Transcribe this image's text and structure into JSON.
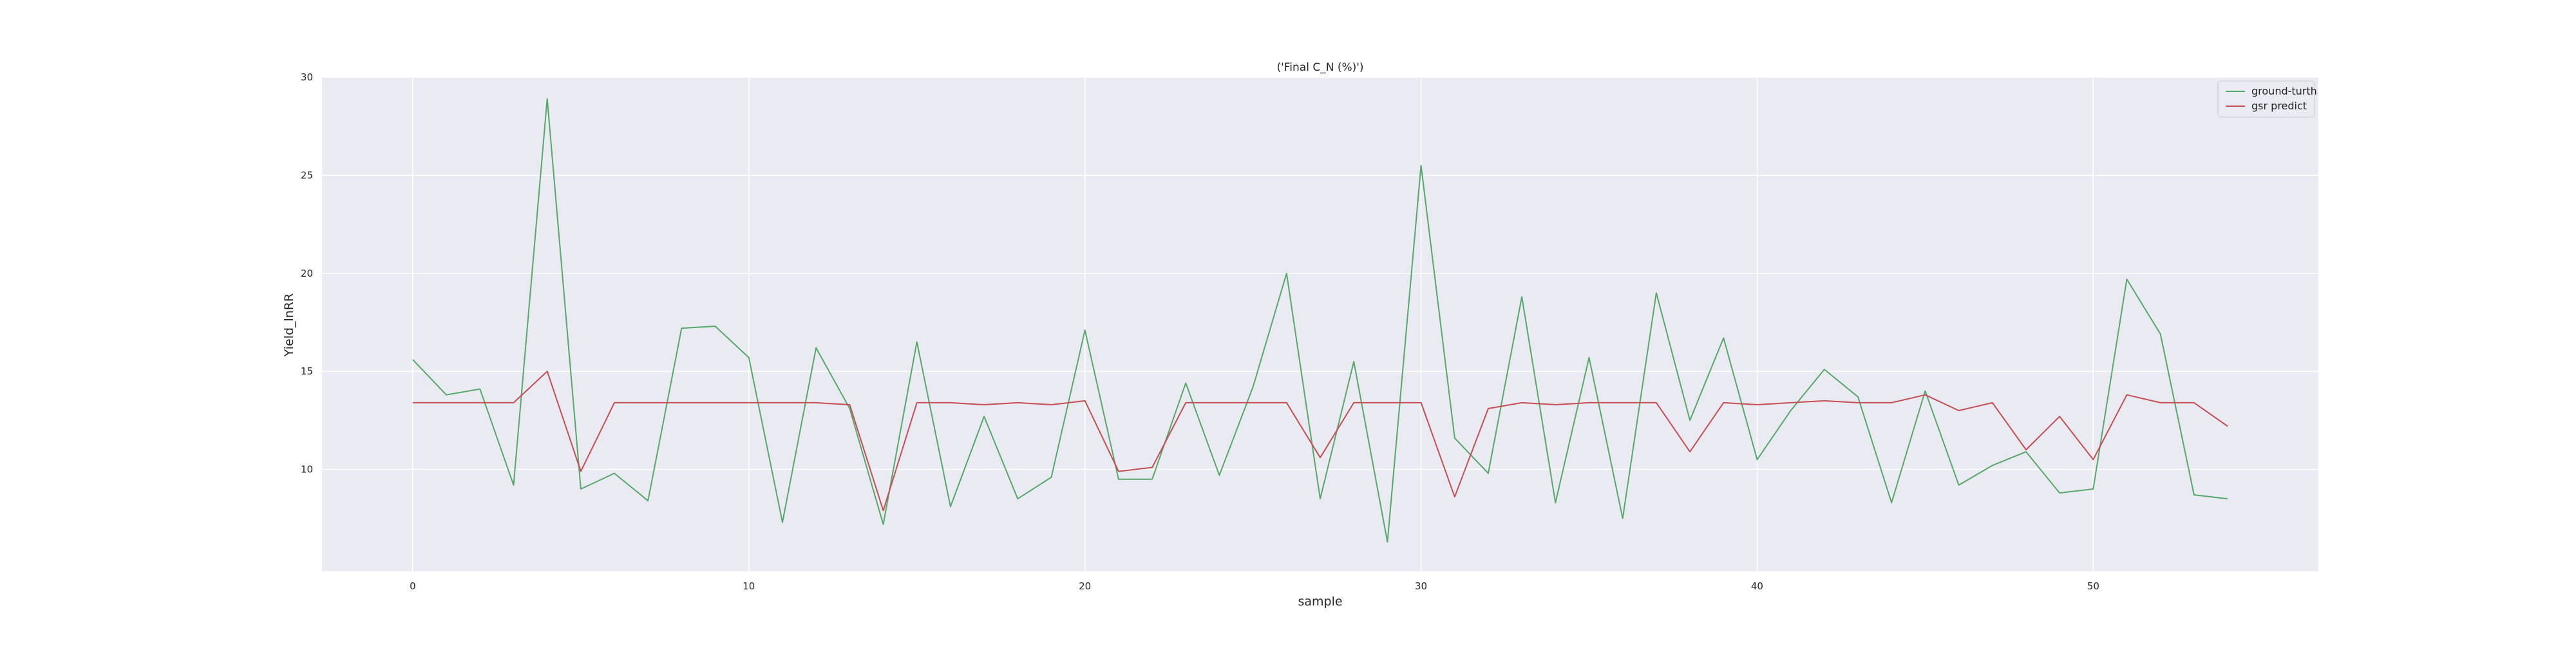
{
  "chart_data": {
    "type": "line",
    "title": "('Final C_N (%)')",
    "xlabel": "sample",
    "ylabel": "Yield_lnRR",
    "xlim": [
      -2.7,
      56.7
    ],
    "ylim": [
      4.8,
      30
    ],
    "x_ticks": [
      0,
      10,
      20,
      30,
      40,
      50
    ],
    "y_ticks": [
      10,
      15,
      20,
      25,
      30
    ],
    "grid": true,
    "legend_position": "top-right",
    "x": [
      0,
      1,
      2,
      3,
      4,
      5,
      6,
      7,
      8,
      9,
      10,
      11,
      12,
      13,
      14,
      15,
      16,
      17,
      18,
      19,
      20,
      21,
      22,
      23,
      24,
      25,
      26,
      27,
      28,
      29,
      30,
      31,
      32,
      33,
      34,
      35,
      36,
      37,
      38,
      39,
      40,
      41,
      42,
      43,
      44,
      45,
      46,
      47,
      48,
      49,
      50,
      51,
      52,
      53,
      54
    ],
    "series": [
      {
        "name": "ground-turth",
        "color": "#55a868",
        "values": [
          15.6,
          13.8,
          14.1,
          9.2,
          28.9,
          9.0,
          9.8,
          8.4,
          17.2,
          17.3,
          15.7,
          7.3,
          16.2,
          13.1,
          7.2,
          16.5,
          8.1,
          12.7,
          8.5,
          9.6,
          17.1,
          9.5,
          9.5,
          14.4,
          9.7,
          14.2,
          20.0,
          8.5,
          15.5,
          6.3,
          25.5,
          11.6,
          9.8,
          18.8,
          8.3,
          15.7,
          7.5,
          19.0,
          12.5,
          16.7,
          10.5,
          13.0,
          15.1,
          13.7,
          8.3,
          14.0,
          9.2,
          10.2,
          10.9,
          8.8,
          9.0,
          19.7,
          16.9,
          8.7,
          8.5
        ]
      },
      {
        "name": "gsr predict",
        "color": "#c44e52",
        "values": [
          13.4,
          13.4,
          13.4,
          13.4,
          15.0,
          9.9,
          13.4,
          13.4,
          13.4,
          13.4,
          13.4,
          13.4,
          13.4,
          13.3,
          7.9,
          13.4,
          13.4,
          13.3,
          13.4,
          13.3,
          13.5,
          9.9,
          10.1,
          13.4,
          13.4,
          13.4,
          13.4,
          10.6,
          13.4,
          13.4,
          13.4,
          8.6,
          13.1,
          13.4,
          13.3,
          13.4,
          13.4,
          13.4,
          10.9,
          13.4,
          13.3,
          13.4,
          13.5,
          13.4,
          13.4,
          13.8,
          13.0,
          13.4,
          11.0,
          12.7,
          10.5,
          13.8,
          13.4,
          13.4,
          12.2
        ]
      }
    ]
  }
}
